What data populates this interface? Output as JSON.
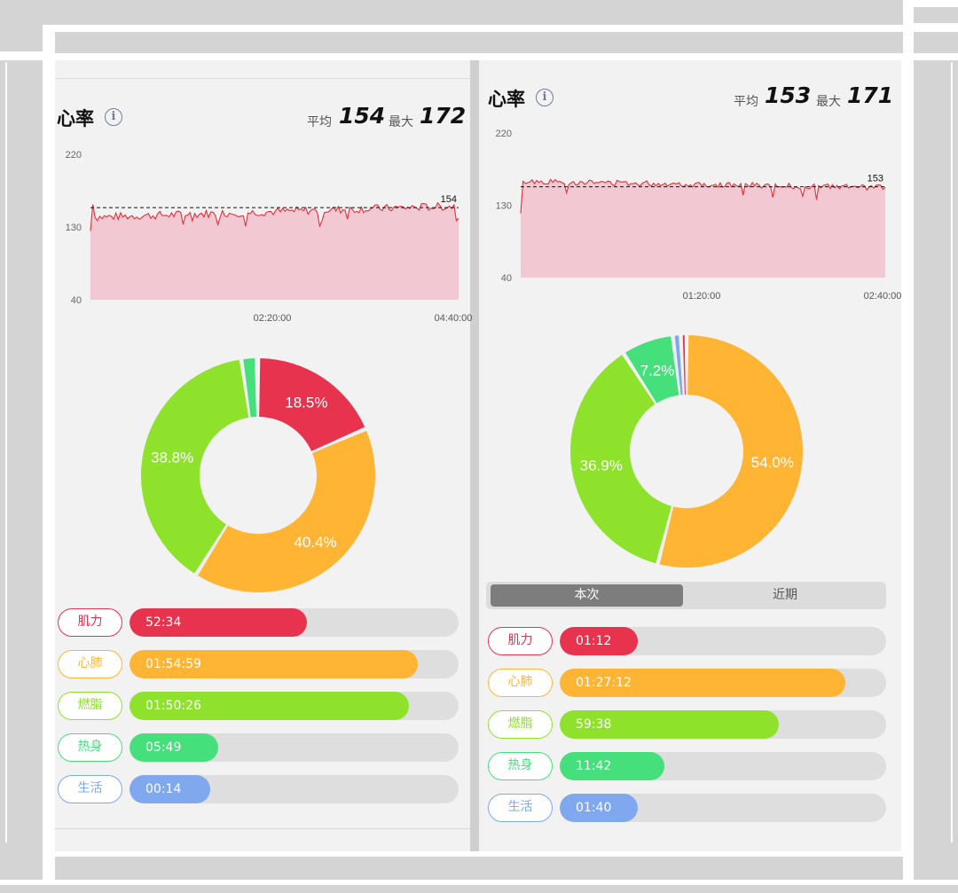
{
  "colors": {
    "strength": "#e8334f",
    "cardio": "#ffb533",
    "fatburn": "#8ee22c",
    "warmup": "#45e07c",
    "life": "#7fa8ef",
    "hr_line": "#e2303a",
    "hr_area": "#f2c9d3"
  },
  "left": {
    "title": "心率",
    "avg_label": "平均",
    "avg_value": "154",
    "max_label": "最大",
    "max_value": "172",
    "chart_data": {
      "type": "area",
      "y_ticks": [
        "220",
        "130",
        "40"
      ],
      "x_ticks": [
        "02:20:00",
        "04:40:00"
      ],
      "ylim": [
        40,
        220
      ],
      "avg_line": 154,
      "avg_label": "154",
      "baseline": 142
    },
    "donut": {
      "slices": [
        {
          "zone": "strength",
          "value": 18.5,
          "label": "18.5%"
        },
        {
          "zone": "cardio",
          "value": 40.4,
          "label": "40.4%"
        },
        {
          "zone": "fatburn",
          "value": 38.8,
          "label": "38.8%"
        },
        {
          "zone": "warmup",
          "value": 2.1,
          "label": ""
        },
        {
          "zone": "life",
          "value": 0.2,
          "label": ""
        }
      ]
    },
    "zones": [
      {
        "key": "strength",
        "label": "肌力",
        "time": "52:34",
        "fraction": 0.54
      },
      {
        "key": "cardio",
        "label": "心肺",
        "time": "01:54:59",
        "fraction": 0.875
      },
      {
        "key": "fatburn",
        "label": "燃脂",
        "time": "01:50:26",
        "fraction": 0.85
      },
      {
        "key": "warmup",
        "label": "热身",
        "time": "05:49",
        "fraction": 0.27
      },
      {
        "key": "life",
        "label": "生活",
        "time": "00:14",
        "fraction": 0.245
      }
    ]
  },
  "right": {
    "title": "心率",
    "avg_label": "平均",
    "avg_value": "153",
    "max_label": "最大",
    "max_value": "171",
    "chart_data": {
      "type": "area",
      "y_ticks": [
        "220",
        "130",
        "40"
      ],
      "x_ticks": [
        "01:20:00",
        "02:40:00"
      ],
      "ylim": [
        40,
        220
      ],
      "avg_line": 153,
      "avg_label": "153",
      "baseline": 160
    },
    "donut": {
      "slices": [
        {
          "zone": "cardio",
          "value": 54.0,
          "label": "54.0%"
        },
        {
          "zone": "fatburn",
          "value": 36.9,
          "label": "36.9%"
        },
        {
          "zone": "warmup",
          "value": 7.2,
          "label": "7.2%"
        },
        {
          "zone": "life",
          "value": 1.1,
          "label": ""
        },
        {
          "zone": "strength",
          "value": 0.8,
          "label": ""
        }
      ]
    },
    "tabs": {
      "current": "本次",
      "recent": "近期"
    },
    "zones": [
      {
        "key": "strength",
        "label": "肌力",
        "time": "01:12",
        "fraction": 0.24
      },
      {
        "key": "cardio",
        "label": "心肺",
        "time": "01:27:12",
        "fraction": 0.875
      },
      {
        "key": "fatburn",
        "label": "燃脂",
        "time": "59:38",
        "fraction": 0.67
      },
      {
        "key": "warmup",
        "label": "热身",
        "time": "11:42",
        "fraction": 0.32
      },
      {
        "key": "life",
        "label": "生活",
        "time": "01:40",
        "fraction": 0.24
      }
    ]
  }
}
